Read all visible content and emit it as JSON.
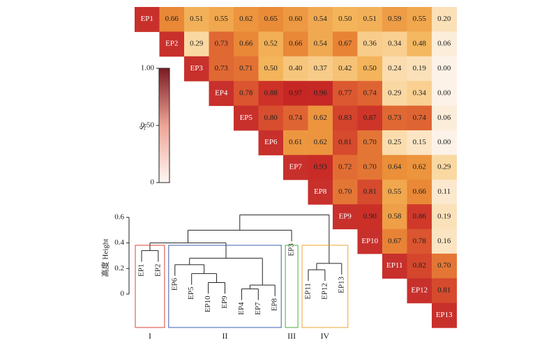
{
  "chart_data": {
    "type": "heatmap",
    "labels": [
      "EP1",
      "EP2",
      "EP3",
      "EP4",
      "EP5",
      "EP6",
      "EP7",
      "EP8",
      "EP9",
      "EP10",
      "EP11",
      "EP12",
      "EP13"
    ],
    "matrix": [
      [
        0.66,
        0.51,
        0.55,
        0.62,
        0.65,
        0.6,
        0.54,
        0.5,
        0.51,
        0.59,
        0.55,
        0.2
      ],
      [
        0.29,
        0.73,
        0.66,
        0.52,
        0.66,
        0.54,
        0.67,
        0.36,
        0.34,
        0.48,
        0.06
      ],
      [
        0.73,
        0.71,
        0.5,
        0.4,
        0.37,
        0.42,
        0.5,
        0.24,
        0.19,
        0.0
      ],
      [
        0.78,
        0.88,
        0.97,
        0.96,
        0.77,
        0.74,
        0.29,
        0.34,
        0.0
      ],
      [
        0.8,
        0.74,
        0.62,
        0.83,
        0.87,
        0.73,
        0.74,
        0.06
      ],
      [
        0.61,
        0.62,
        0.81,
        0.7,
        0.25,
        0.15,
        0.0
      ],
      [
        0.93,
        0.72,
        0.7,
        0.64,
        0.62,
        0.29
      ],
      [
        0.7,
        0.81,
        0.55,
        0.66,
        0.11
      ],
      [
        0.9,
        0.58,
        0.86,
        0.19
      ],
      [
        0.67,
        0.78,
        0.16
      ],
      [
        0.82,
        0.7
      ],
      [
        0.81
      ],
      []
    ],
    "value_labels": [
      [
        "0.66",
        "0.51",
        "0.55",
        "0.62",
        "0.65",
        "0.60",
        "0.54",
        "0.50",
        "0.51",
        "0.59",
        "0.55",
        "0.20"
      ],
      [
        "0.29",
        "0.73",
        "0.66",
        "0.52",
        "0.66",
        "0.54",
        "0.67",
        "0.36",
        "0.34",
        "0.48",
        "0.06"
      ],
      [
        "0.73",
        "0.71",
        "0.50",
        "0.40",
        "0.37",
        "0.42",
        "0.50",
        "0.24",
        "0.19",
        "0.00"
      ],
      [
        "0.78",
        "0.88",
        "0.97",
        "0.96",
        "0.77",
        "0.74",
        "0.29",
        "0.34",
        "0.00"
      ],
      [
        "0.80",
        "0.74",
        "0.62",
        "0.83",
        "0.87",
        "0.73",
        "0.74",
        "0.06"
      ],
      [
        "0.61",
        "0.62",
        "0.81",
        "0.70",
        "0.25",
        "0.15",
        "0.00"
      ],
      [
        "0.93",
        "0.72",
        "0.70",
        "0.64",
        "0.62",
        "0.29"
      ],
      [
        "0.70",
        "0.81",
        "0.55",
        "0.66",
        "0.11"
      ],
      [
        "0.90",
        "0.58",
        "0.86",
        "0.19"
      ],
      [
        "0.67",
        "0.78",
        "0.16"
      ],
      [
        "0.82",
        "0.70"
      ],
      [
        "0.81"
      ],
      []
    ],
    "colorbar": {
      "label": {
        "main": "S",
        "sub": "s"
      },
      "lim": [
        0,
        1
      ],
      "ticks": [
        0,
        {
          "value": 0.5,
          "label": "0.50"
        },
        {
          "value": 1,
          "label": "1.00"
        }
      ]
    },
    "dendrogram": {
      "ylabel": "高度 Height",
      "ylim": [
        0,
        0.65
      ],
      "yticks": [
        0,
        0.2,
        0.4,
        0.6
      ],
      "leaves": [
        "EP1",
        "EP2",
        "EP6",
        "EP5",
        "EP10",
        "EP9",
        "EP4",
        "EP7",
        "EP8",
        "EP3",
        "EP11",
        "EP12",
        "EP13"
      ],
      "merges": [
        {
          "left": "EP4",
          "right": "EP7",
          "height": 0.04
        },
        {
          "left": 0,
          "right": "EP8",
          "height": 0.07
        },
        {
          "left": "EP10",
          "right": "EP9",
          "height": 0.09
        },
        {
          "left": "EP5",
          "right": 2,
          "height": 0.16
        },
        {
          "left": "EP6",
          "right": 3,
          "height": 0.23
        },
        {
          "left": 4,
          "right": 1,
          "height": 0.28
        },
        {
          "left": "EP1",
          "right": "EP2",
          "height": 0.34
        },
        {
          "left": 6,
          "right": 5,
          "height": 0.4
        },
        {
          "left": "EP11",
          "right": "EP12",
          "height": 0.19
        },
        {
          "left": 8,
          "right": "EP13",
          "height": 0.24
        },
        {
          "left": 7,
          "right": "EP3",
          "height": 0.5
        },
        {
          "left": 10,
          "right": 9,
          "height": 0.62
        }
      ],
      "groups": [
        {
          "label": "I",
          "color": "#e0403a",
          "from": "EP1",
          "to": "EP2"
        },
        {
          "label": "II",
          "color": "#3a5fb0",
          "from": "EP6",
          "to": "EP8"
        },
        {
          "label": "III",
          "color": "#4caa3c",
          "from": "EP3",
          "to": "EP3"
        },
        {
          "label": "IV",
          "color": "#f0a530",
          "from": "EP11",
          "to": "EP13"
        }
      ]
    }
  }
}
